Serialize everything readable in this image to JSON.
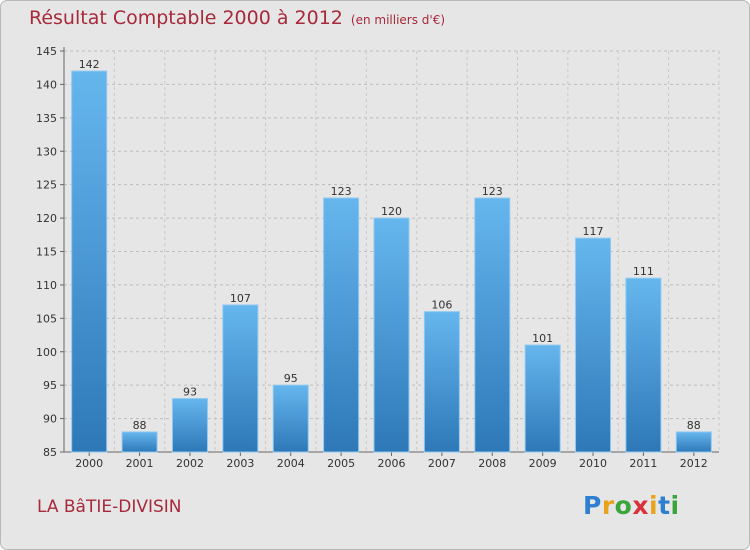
{
  "header": {
    "title": "Résultat Comptable 2000 à 2012",
    "subtitle": "(en milliers d'€)"
  },
  "commune": "LA BâTIE-DIVISIN",
  "logo": {
    "text": "Proxiti",
    "letters": [
      "P",
      "r",
      "o",
      "x",
      "i",
      "t",
      "i"
    ],
    "colors": [
      "#2f7fd0",
      "#e8a21c",
      "#3aa53a",
      "#d8323a",
      "#e8a21c",
      "#2f7fd0",
      "#3aa53a"
    ]
  },
  "chart_data": {
    "type": "bar",
    "title": "Résultat Comptable 2000 à 2012",
    "subtitle": "(en milliers d'€)",
    "xlabel": "",
    "ylabel": "",
    "categories": [
      "2000",
      "2001",
      "2002",
      "2003",
      "2004",
      "2005",
      "2006",
      "2007",
      "2008",
      "2009",
      "2010",
      "2011",
      "2012"
    ],
    "values": [
      142,
      88,
      93,
      107,
      95,
      123,
      120,
      106,
      123,
      101,
      117,
      111,
      88
    ],
    "ylim": [
      85,
      145
    ],
    "yticks": [
      85,
      90,
      95,
      100,
      105,
      110,
      115,
      120,
      125,
      130,
      135,
      140,
      145
    ],
    "grid": true,
    "bar_color": "#4a9fe0",
    "bar_color_light": "#66b6ee",
    "bar_color_dark": "#2e78b8"
  }
}
